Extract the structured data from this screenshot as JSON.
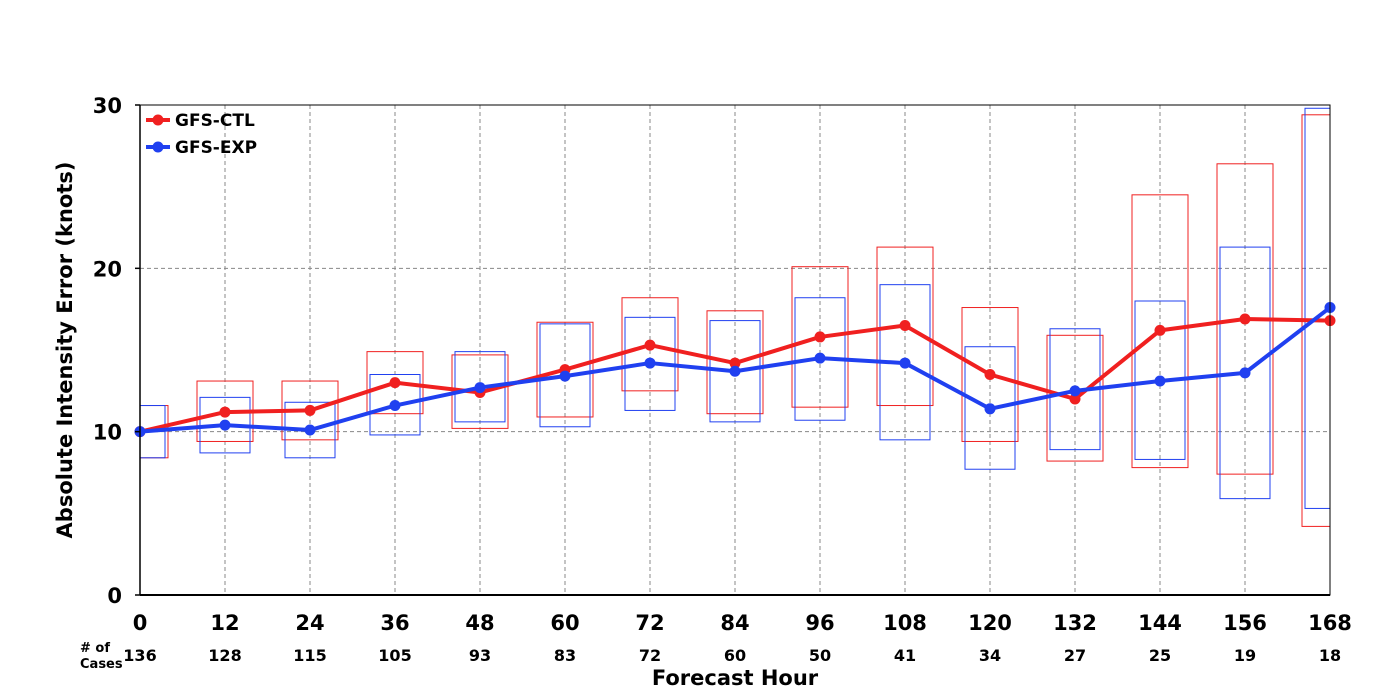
{
  "chart_data": {
    "type": "line",
    "title": "",
    "xlabel": "Forecast Hour",
    "ylabel": "Absolute Intensity Error (knots)",
    "ylim": [
      0,
      30
    ],
    "xlim": [
      0,
      168
    ],
    "yticks": [
      0,
      10,
      20,
      30
    ],
    "x": [
      0,
      12,
      24,
      36,
      48,
      60,
      72,
      84,
      96,
      108,
      120,
      132,
      144,
      156,
      168
    ],
    "cases_label": "# of\nCases",
    "cases": [
      136,
      128,
      115,
      105,
      93,
      83,
      72,
      60,
      50,
      41,
      34,
      27,
      25,
      19,
      18
    ],
    "grid": true,
    "legend_position": "top-left",
    "series": [
      {
        "name": "GFS-CTL",
        "color": "#f02020",
        "values": [
          10.0,
          11.2,
          11.3,
          13.0,
          12.4,
          13.8,
          15.3,
          14.2,
          15.8,
          16.5,
          13.5,
          12.0,
          16.2,
          16.9,
          16.8
        ],
        "box_low": [
          8.4,
          9.4,
          9.5,
          11.1,
          10.2,
          10.9,
          12.5,
          11.1,
          11.5,
          11.6,
          9.4,
          8.2,
          7.8,
          7.4,
          4.2
        ],
        "box_high": [
          11.6,
          13.1,
          13.1,
          14.9,
          14.7,
          16.7,
          18.2,
          17.4,
          20.1,
          21.3,
          17.6,
          15.9,
          24.5,
          26.4,
          29.4
        ]
      },
      {
        "name": "GFS-EXP",
        "color": "#2040f0",
        "values": [
          10.0,
          10.4,
          10.1,
          11.6,
          12.7,
          13.4,
          14.2,
          13.7,
          14.5,
          14.2,
          11.4,
          12.5,
          13.1,
          13.6,
          17.6
        ],
        "box_low": [
          8.4,
          8.7,
          8.4,
          9.8,
          10.6,
          10.3,
          11.3,
          10.6,
          10.7,
          9.5,
          7.7,
          8.9,
          8.3,
          5.9,
          5.3
        ],
        "box_high": [
          11.6,
          12.1,
          11.8,
          13.5,
          14.9,
          16.6,
          17.0,
          16.8,
          18.2,
          19.0,
          15.2,
          16.3,
          18.0,
          21.3,
          29.8
        ]
      }
    ]
  }
}
